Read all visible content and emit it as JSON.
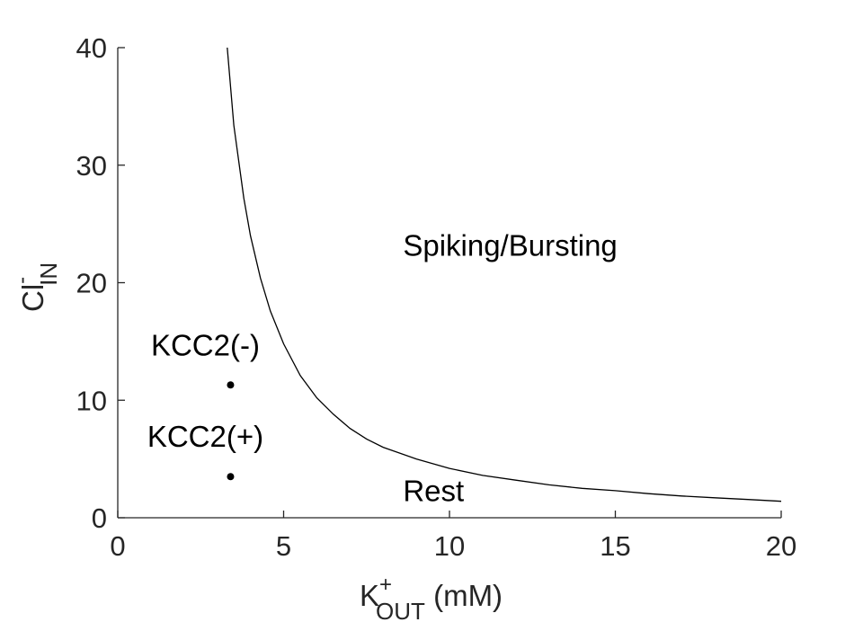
{
  "chart_data": {
    "type": "line",
    "xlabel": {
      "main": "K",
      "sup": "+",
      "sub": "OUT",
      "suffix": " (mM)"
    },
    "ylabel": {
      "main": "Cl",
      "sup": "-",
      "sub": "IN"
    },
    "xlim": [
      0,
      20
    ],
    "ylim": [
      0,
      40
    ],
    "xticks": [
      0,
      5,
      10,
      15,
      20
    ],
    "yticks": [
      0,
      10,
      20,
      30,
      40
    ],
    "grid": false,
    "series": [
      {
        "x": [
          3.3,
          3.5,
          3.8,
          4.0,
          4.3,
          4.6,
          5.0,
          5.5,
          6.0,
          6.5,
          7.0,
          7.5,
          8.0,
          9.0,
          10.0,
          11.0,
          12.0,
          13.0,
          14.0,
          15.0,
          16.0,
          17.0,
          18.0,
          19.0,
          20.0
        ],
        "y": [
          40.0,
          33.4,
          27.2,
          24.0,
          20.4,
          17.6,
          14.8,
          12.1,
          10.2,
          8.8,
          7.6,
          6.7,
          6.0,
          5.0,
          4.2,
          3.6,
          3.2,
          2.8,
          2.5,
          2.3,
          2.05,
          1.85,
          1.7,
          1.55,
          1.4
        ],
        "color": "#000000"
      }
    ],
    "points": [
      {
        "label": "KCC2(-)",
        "x": 3.4,
        "y": 11.3
      },
      {
        "label": "KCC2(+)",
        "x": 3.4,
        "y": 3.5
      }
    ],
    "annotations": [
      {
        "text": "Spiking/Bursting",
        "x": 8.6,
        "y": 22.3
      },
      {
        "text": "Rest",
        "x": 8.6,
        "y": 1.4
      }
    ]
  }
}
